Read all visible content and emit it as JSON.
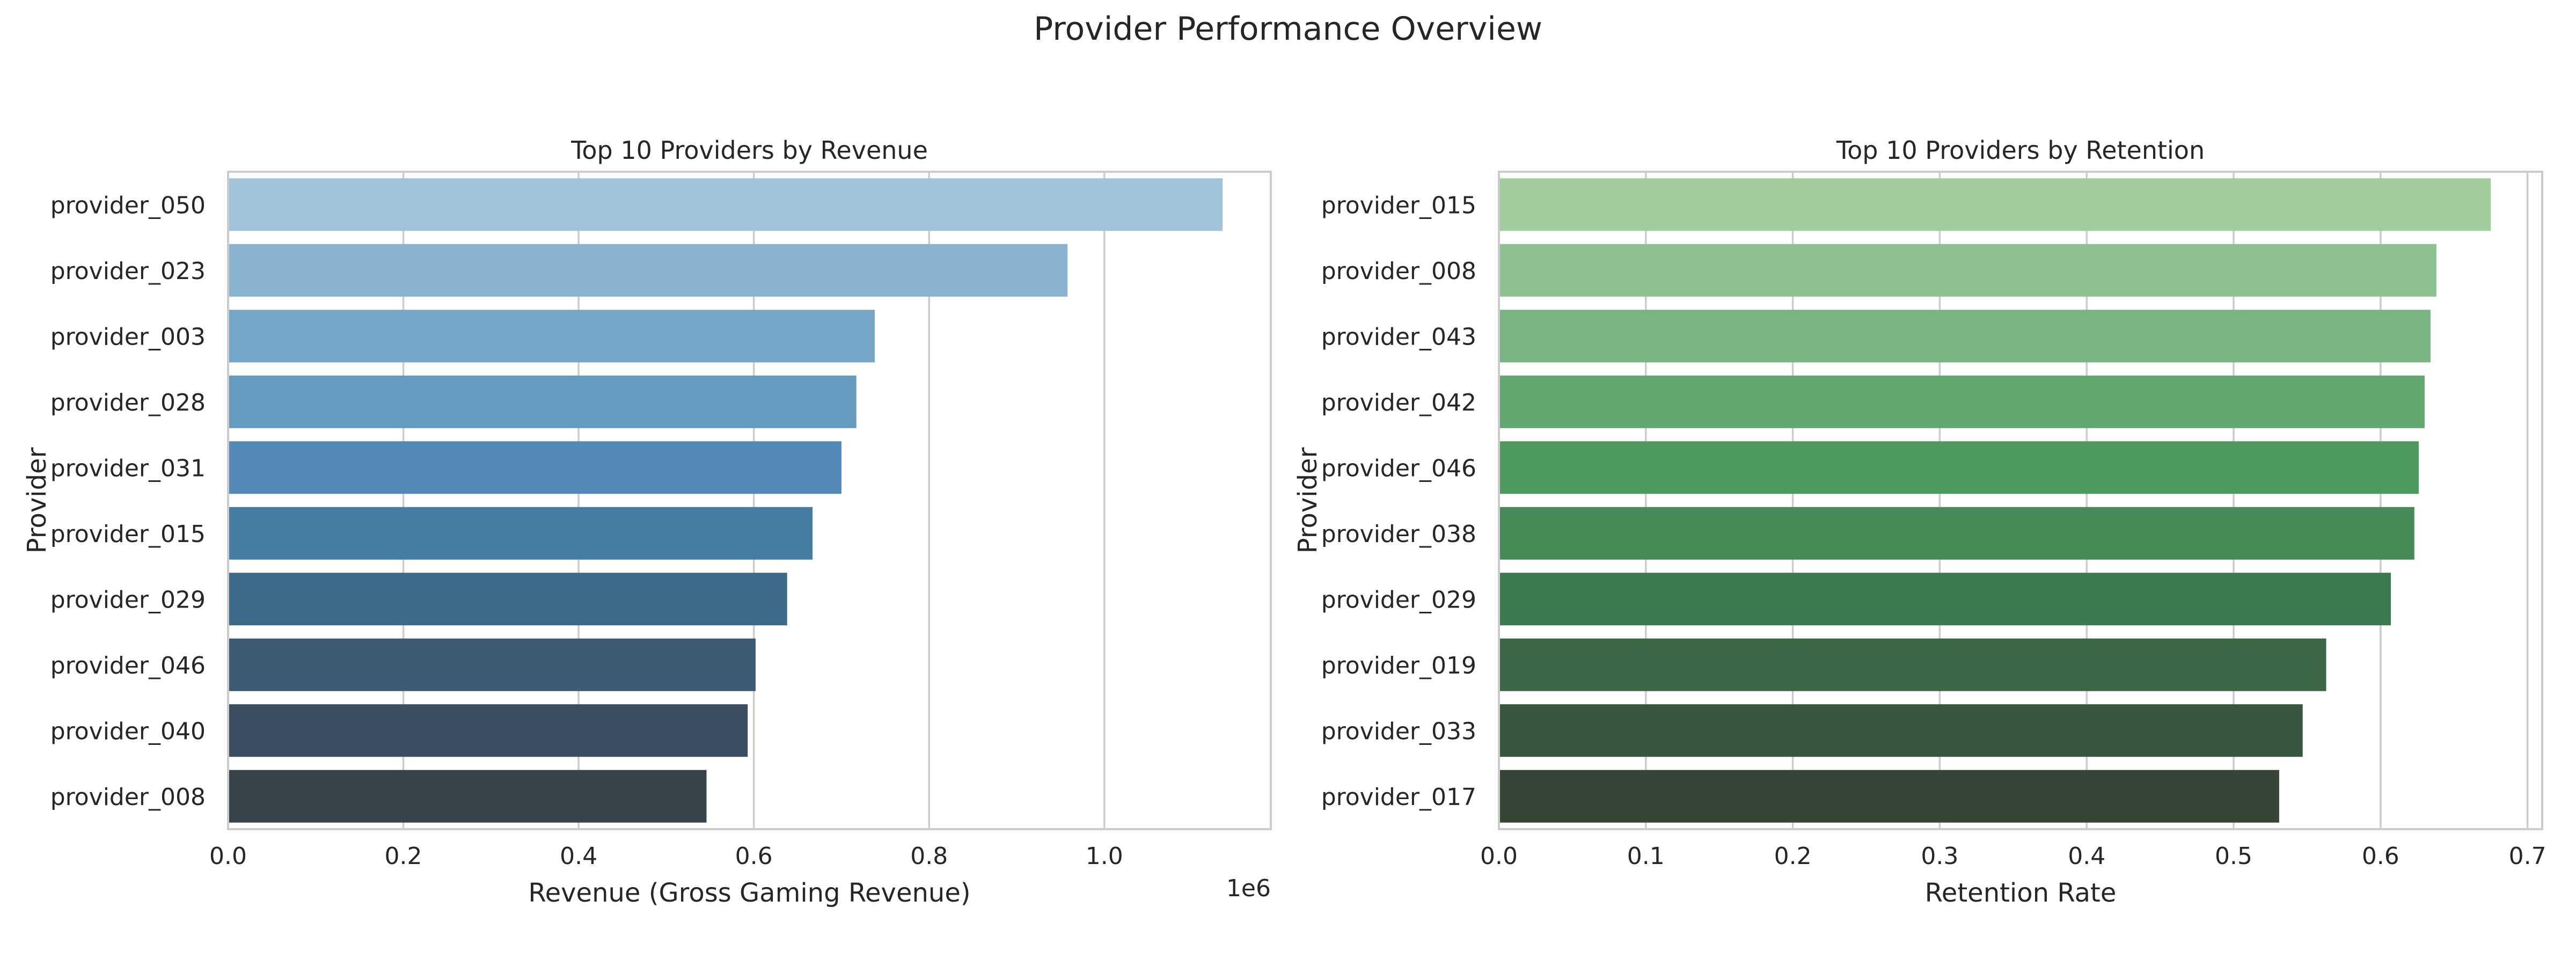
{
  "figure": {
    "title": "Provider Performance Overview"
  },
  "chart_data": [
    {
      "type": "bar",
      "orientation": "horizontal",
      "title": "Top 10 Providers by Revenue",
      "xlabel": "Revenue (Gross Gaming Revenue)",
      "ylabel": "Provider",
      "x_offset_label": "1e6",
      "xlim": [
        0,
        1.19
      ],
      "xticks": [
        0.0,
        0.2,
        0.4,
        0.6,
        0.8,
        1.0
      ],
      "xtick_labels": [
        "0.0",
        "0.2",
        "0.4",
        "0.6",
        "0.8",
        "1.0"
      ],
      "grid": true,
      "categories": [
        "provider_050",
        "provider_023",
        "provider_003",
        "provider_028",
        "provider_031",
        "provider_015",
        "provider_029",
        "provider_046",
        "provider_040",
        "provider_008"
      ],
      "values": [
        1.135,
        0.958,
        0.738,
        0.717,
        0.7,
        0.667,
        0.638,
        0.602,
        0.593,
        0.546
      ],
      "colors": [
        "#a0c3d9",
        "#8ab3cf",
        "#77a7c8",
        "#669bc0",
        "#548ab5",
        "#467da3",
        "#3e6a8a",
        "#3d5b75",
        "#3c4d60",
        "#384249"
      ]
    },
    {
      "type": "bar",
      "orientation": "horizontal",
      "title": "Top 10 Providers by Retention",
      "xlabel": "Retention Rate",
      "ylabel": "Provider",
      "xlim": [
        0,
        0.71
      ],
      "xticks": [
        0.0,
        0.1,
        0.2,
        0.3,
        0.4,
        0.5,
        0.6,
        0.7
      ],
      "xtick_labels": [
        "0.0",
        "0.1",
        "0.2",
        "0.3",
        "0.4",
        "0.5",
        "0.6",
        "0.7"
      ],
      "grid": true,
      "categories": [
        "provider_015",
        "provider_008",
        "provider_043",
        "provider_042",
        "provider_046",
        "provider_038",
        "provider_029",
        "provider_019",
        "provider_033",
        "provider_017"
      ],
      "values": [
        0.675,
        0.638,
        0.634,
        0.63,
        0.626,
        0.623,
        0.607,
        0.563,
        0.547,
        0.531
      ],
      "colors": [
        "#a1cd9e",
        "#8dc191",
        "#78b582",
        "#63a770",
        "#4f9a5e",
        "#468a58",
        "#3e7a4f",
        "#3b6747",
        "#39553f",
        "#364536"
      ]
    }
  ]
}
